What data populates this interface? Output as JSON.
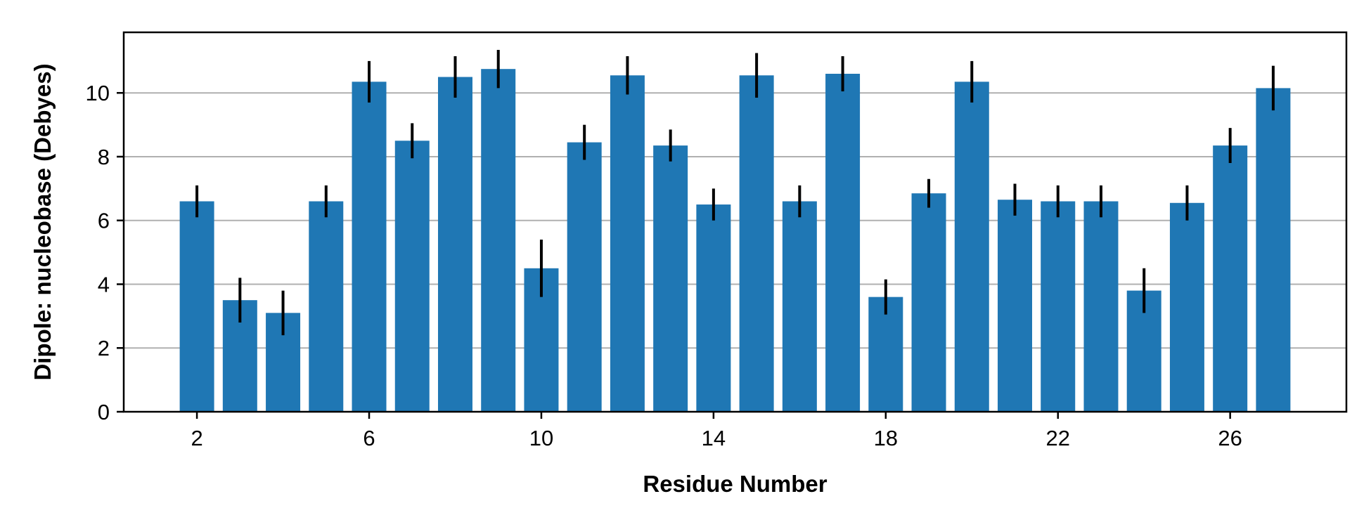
{
  "chart_data": {
    "type": "bar",
    "title": "",
    "xlabel": "Residue Number",
    "ylabel": "Dipole: nucleobase (Debyes)",
    "x": [
      2,
      3,
      4,
      5,
      6,
      7,
      8,
      9,
      10,
      11,
      12,
      13,
      14,
      15,
      16,
      17,
      18,
      19,
      20,
      21,
      22,
      23,
      24,
      25,
      26,
      27
    ],
    "values": [
      6.6,
      3.5,
      3.1,
      6.6,
      10.35,
      8.5,
      10.5,
      10.75,
      4.5,
      8.45,
      10.55,
      8.35,
      6.5,
      10.55,
      6.6,
      10.6,
      3.6,
      6.85,
      10.35,
      6.65,
      6.6,
      6.6,
      3.8,
      6.55,
      8.35,
      10.15
    ],
    "errors": [
      0.5,
      0.7,
      0.7,
      0.5,
      0.65,
      0.55,
      0.65,
      0.6,
      0.9,
      0.55,
      0.6,
      0.5,
      0.5,
      0.7,
      0.5,
      0.55,
      0.55,
      0.45,
      0.65,
      0.5,
      0.5,
      0.5,
      0.7,
      0.55,
      0.55,
      0.7
    ],
    "xlim": [
      0.3,
      28.7
    ],
    "ylim": [
      0,
      11.9
    ],
    "xticks": [
      2,
      6,
      10,
      14,
      18,
      22,
      26
    ],
    "yticks": [
      0,
      2,
      4,
      6,
      8,
      10
    ],
    "grid": "y",
    "bar_color": "#1f77b4",
    "error_color": "#000000",
    "grid_color": "#b0b0b0"
  }
}
